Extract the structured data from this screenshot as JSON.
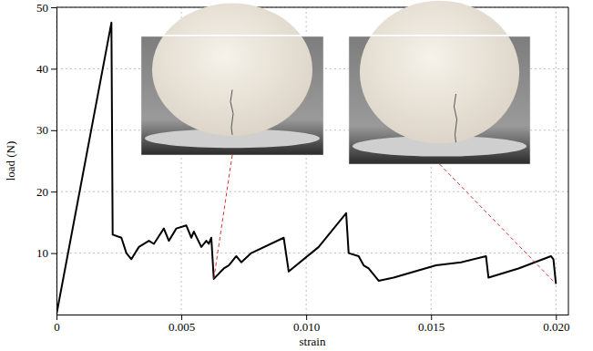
{
  "chart_data": {
    "type": "line",
    "x_label": "strain",
    "y_label": "load (N)",
    "x": [
      0,
      0.0022,
      0.00225,
      0.0026,
      0.0028,
      0.003,
      0.0033,
      0.0037,
      0.0039,
      0.0043,
      0.0045,
      0.0048,
      0.0052,
      0.0054,
      0.0055,
      0.0058,
      0.006,
      0.0061,
      0.0062,
      0.0063,
      0.0067,
      0.0069,
      0.0072,
      0.0074,
      0.0078,
      0.0091,
      0.0093,
      0.0105,
      0.0116,
      0.0117,
      0.0121,
      0.0123,
      0.0125,
      0.0127,
      0.0129,
      0.0135,
      0.0152,
      0.0162,
      0.0172,
      0.0173,
      0.0185,
      0.0198,
      0.0199,
      0.02
    ],
    "values": [
      0,
      47.5,
      13,
      12.5,
      10,
      9,
      11,
      12,
      11.5,
      14,
      12,
      14,
      14.5,
      12.5,
      13.5,
      11,
      12,
      11.5,
      12.5,
      5.8,
      7.5,
      8,
      9.5,
      8.5,
      10,
      12.5,
      7,
      11,
      16.5,
      10,
      9.5,
      8,
      7.5,
      6.5,
      5.5,
      6,
      8,
      8.5,
      9.5,
      6,
      7.5,
      9.5,
      9,
      5
    ],
    "color": "#000000",
    "xlim": [
      0,
      0.0205
    ],
    "ylim": [
      0,
      50
    ],
    "xticks": [
      0,
      0.005,
      {
        "value": 0.01,
        "label": "0.010"
      },
      0.015,
      {
        "value": 0.02,
        "label": "0.020"
      }
    ],
    "yticks": [
      10,
      20,
      30,
      40,
      50
    ],
    "grid": true
  }
}
